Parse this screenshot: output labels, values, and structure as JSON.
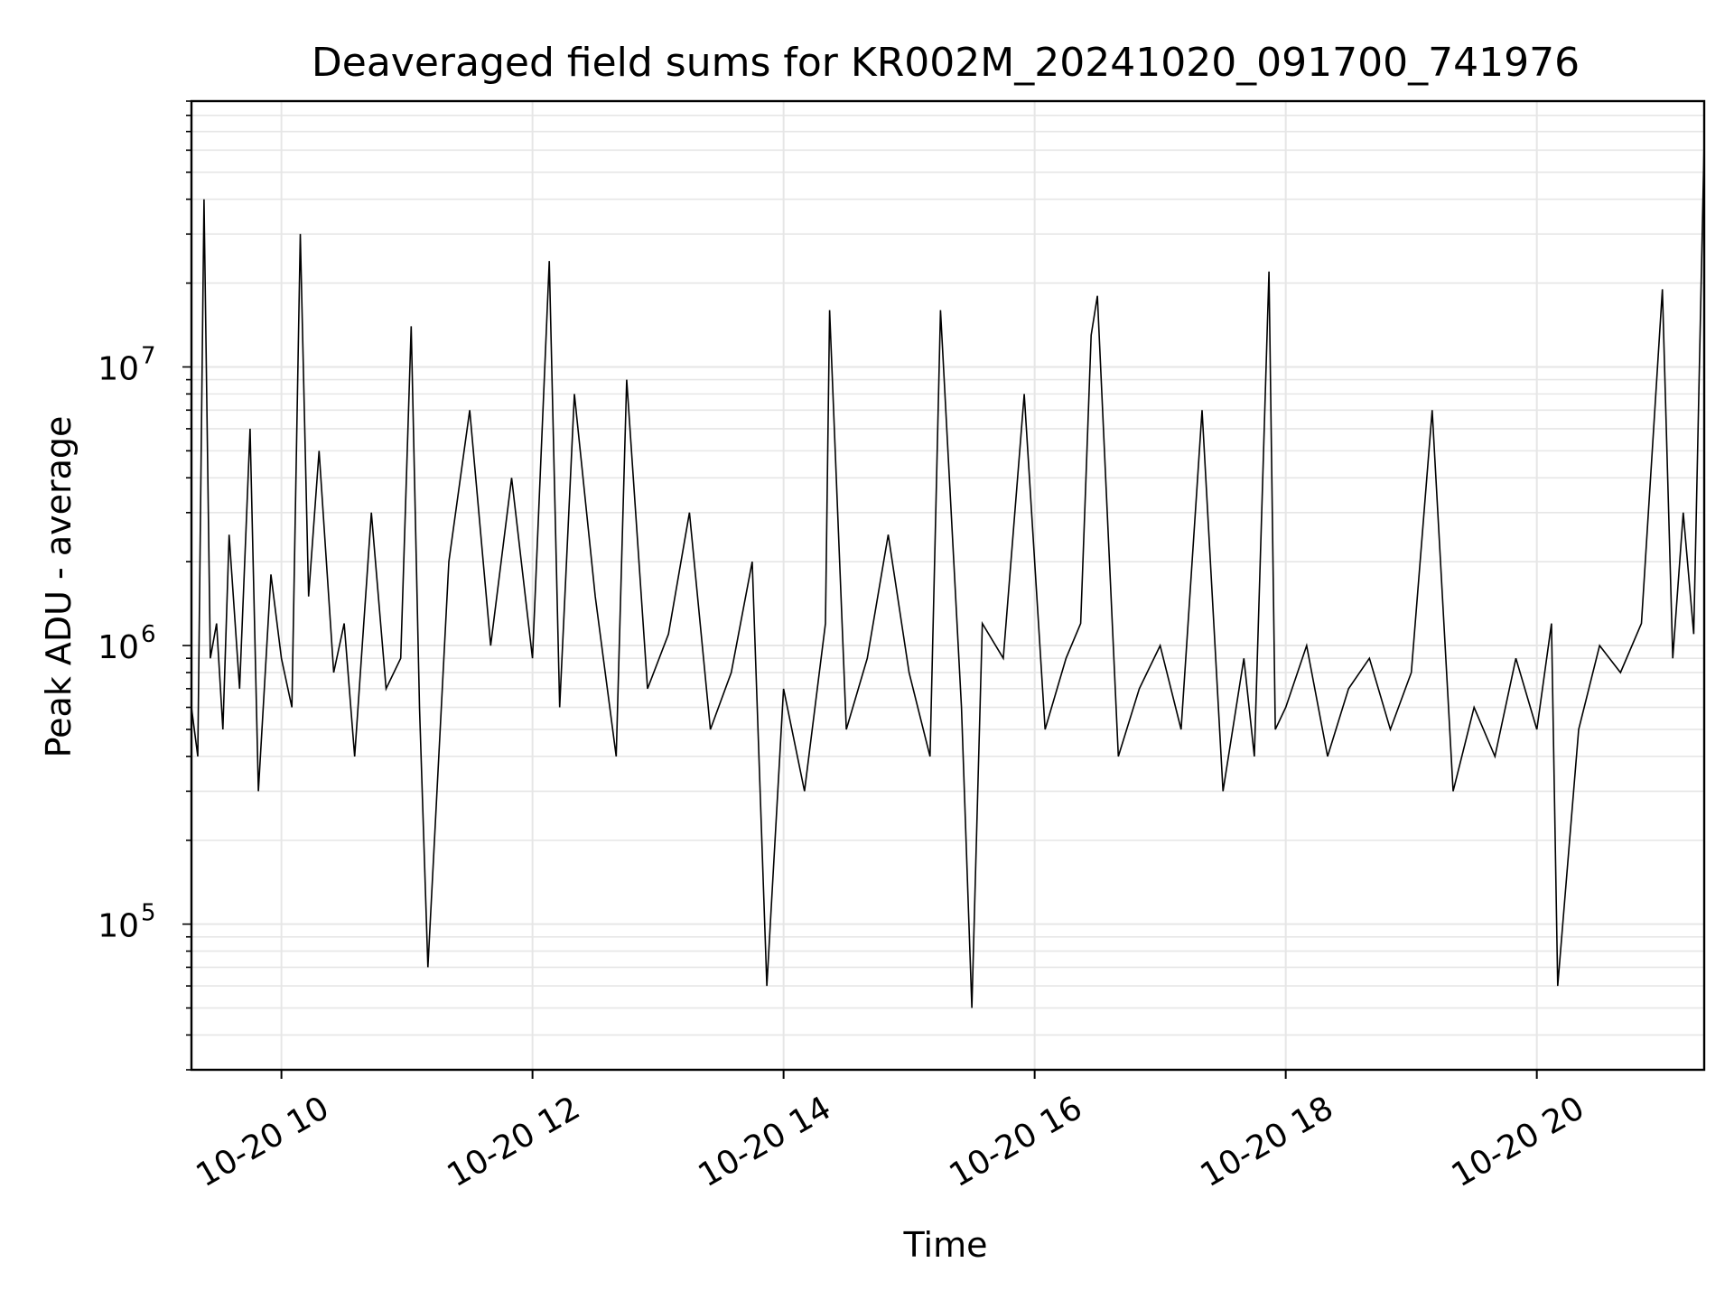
{
  "chart_data": {
    "type": "line",
    "title": "Deaveraged field sums for KR002M_20241020_091700_741976",
    "xlabel": "Time",
    "ylabel": "Peak ADU - average",
    "y_scale": "log",
    "ylim": [
      30000,
      90000000
    ],
    "xlim": [
      "2024-10-20 09:17",
      "2024-10-20 21:20"
    ],
    "grid": true,
    "line_color": "#000000",
    "grid_color": "#e6e6e6",
    "x_ticks": [
      {
        "label": "10-20 10",
        "value": "2024-10-20 10:00"
      },
      {
        "label": "10-20 12",
        "value": "2024-10-20 12:00"
      },
      {
        "label": "10-20 14",
        "value": "2024-10-20 14:00"
      },
      {
        "label": "10-20 16",
        "value": "2024-10-20 16:00"
      },
      {
        "label": "10-20 18",
        "value": "2024-10-20 18:00"
      },
      {
        "label": "10-20 20",
        "value": "2024-10-20 20:00"
      }
    ],
    "y_ticks": [
      {
        "base": "10",
        "exp": "5",
        "value": 100000
      },
      {
        "base": "10",
        "exp": "6",
        "value": 1000000
      },
      {
        "base": "10",
        "exp": "7",
        "value": 10000000
      }
    ],
    "series": [
      {
        "x": [
          "2024-10-20 09:17",
          "2024-10-20 09:20",
          "2024-10-20 09:23",
          "2024-10-20 09:26",
          "2024-10-20 09:29",
          "2024-10-20 09:32",
          "2024-10-20 09:35",
          "2024-10-20 09:40",
          "2024-10-20 09:45",
          "2024-10-20 09:49",
          "2024-10-20 09:55",
          "2024-10-20 10:00",
          "2024-10-20 10:05",
          "2024-10-20 10:09",
          "2024-10-20 10:13",
          "2024-10-20 10:18",
          "2024-10-20 10:25",
          "2024-10-20 10:30",
          "2024-10-20 10:35",
          "2024-10-20 10:43",
          "2024-10-20 10:50",
          "2024-10-20 10:57",
          "2024-10-20 11:02",
          "2024-10-20 11:06",
          "2024-10-20 11:10",
          "2024-10-20 11:20",
          "2024-10-20 11:30",
          "2024-10-20 11:40",
          "2024-10-20 11:50",
          "2024-10-20 12:00",
          "2024-10-20 12:08",
          "2024-10-20 12:13",
          "2024-10-20 12:20",
          "2024-10-20 12:30",
          "2024-10-20 12:40",
          "2024-10-20 12:45",
          "2024-10-20 12:55",
          "2024-10-20 13:05",
          "2024-10-20 13:15",
          "2024-10-20 13:25",
          "2024-10-20 13:35",
          "2024-10-20 13:45",
          "2024-10-20 13:52",
          "2024-10-20 14:00",
          "2024-10-20 14:10",
          "2024-10-20 14:20",
          "2024-10-20 14:22",
          "2024-10-20 14:30",
          "2024-10-20 14:40",
          "2024-10-20 14:50",
          "2024-10-20 15:00",
          "2024-10-20 15:10",
          "2024-10-20 15:15",
          "2024-10-20 15:25",
          "2024-10-20 15:30",
          "2024-10-20 15:35",
          "2024-10-20 15:45",
          "2024-10-20 15:55",
          "2024-10-20 16:05",
          "2024-10-20 16:15",
          "2024-10-20 16:22",
          "2024-10-20 16:27",
          "2024-10-20 16:30",
          "2024-10-20 16:40",
          "2024-10-20 16:50",
          "2024-10-20 17:00",
          "2024-10-20 17:10",
          "2024-10-20 17:20",
          "2024-10-20 17:30",
          "2024-10-20 17:40",
          "2024-10-20 17:45",
          "2024-10-20 17:52",
          "2024-10-20 17:55",
          "2024-10-20 18:00",
          "2024-10-20 18:10",
          "2024-10-20 18:20",
          "2024-10-20 18:30",
          "2024-10-20 18:40",
          "2024-10-20 18:50",
          "2024-10-20 19:00",
          "2024-10-20 19:10",
          "2024-10-20 19:20",
          "2024-10-20 19:30",
          "2024-10-20 19:40",
          "2024-10-20 19:50",
          "2024-10-20 20:00",
          "2024-10-20 20:07",
          "2024-10-20 20:10",
          "2024-10-20 20:20",
          "2024-10-20 20:30",
          "2024-10-20 20:40",
          "2024-10-20 20:50",
          "2024-10-20 21:00",
          "2024-10-20 21:05",
          "2024-10-20 21:10",
          "2024-10-20 21:15",
          "2024-10-20 21:20"
        ],
        "y": [
          600000,
          400000,
          40000000,
          900000,
          1200000,
          500000,
          2500000,
          700000,
          6000000,
          300000,
          1800000,
          900000,
          600000,
          30000000,
          1500000,
          5000000,
          800000,
          1200000,
          400000,
          3000000,
          700000,
          900000,
          14000000,
          600000,
          70000,
          2000000,
          7000000,
          1000000,
          4000000,
          900000,
          24000000,
          600000,
          8000000,
          1500000,
          400000,
          9000000,
          700000,
          1100000,
          3000000,
          500000,
          800000,
          2000000,
          60000,
          700000,
          300000,
          1200000,
          16000000,
          500000,
          900000,
          2500000,
          800000,
          400000,
          16000000,
          600000,
          50000,
          1200000,
          900000,
          8000000,
          500000,
          900000,
          1200000,
          13000000,
          18000000,
          400000,
          700000,
          1000000,
          500000,
          7000000,
          300000,
          900000,
          400000,
          22000000,
          500000,
          600000,
          1000000,
          400000,
          700000,
          900000,
          500000,
          800000,
          7000000,
          300000,
          600000,
          400000,
          900000,
          500000,
          1200000,
          60000,
          500000,
          1000000,
          800000,
          1200000,
          19000000,
          900000,
          3000000,
          1100000,
          65000000
        ]
      }
    ]
  }
}
